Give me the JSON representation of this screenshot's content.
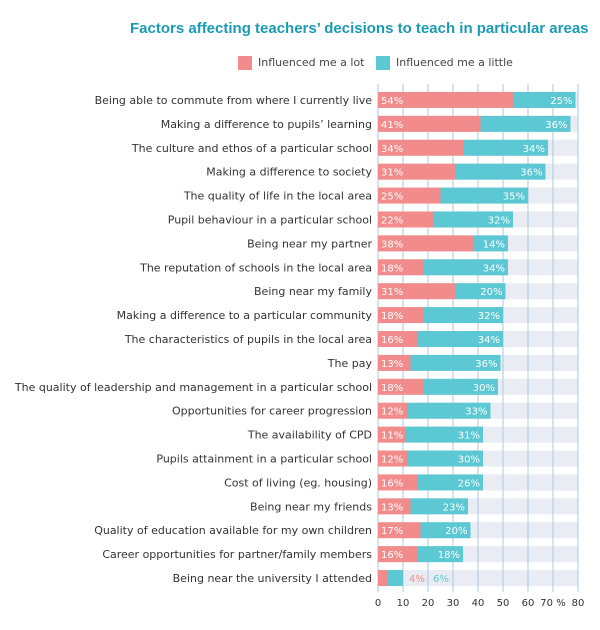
{
  "chart_data": {
    "type": "bar",
    "stacked": true,
    "orientation": "horizontal",
    "title": "Factors affecting teachers’ decisions to teach in particular areas",
    "categories": [
      "Being able to commute from where I currently live",
      "Making a difference to pupils’ learning",
      "The culture and ethos of a particular school",
      "Making a difference to society",
      "The quality of life in the local area",
      "Pupil behaviour in a particular school",
      "Being near my partner",
      "The reputation of schools in the local area",
      "Being near my family",
      "Making a difference to a particular community",
      "The characteristics of pupils in the local area",
      "The pay",
      "The quality of leadership and management in a particular school",
      "Opportunities for career progression",
      "The availability of CPD",
      "Pupils attainment in a particular school",
      "Cost of living (eg. housing)",
      "Being near my friends",
      "Quality of education available for my own children",
      "Career opportunities for partner/family members",
      "Being near the university I attended"
    ],
    "series": [
      {
        "name": "Influenced me a lot",
        "color": "#f28b8b",
        "values": [
          54,
          41,
          34,
          31,
          25,
          22,
          38,
          18,
          31,
          18,
          16,
          13,
          18,
          12,
          11,
          12,
          16,
          13,
          17,
          16,
          4
        ],
        "labels": [
          "54%",
          "41%",
          "34%",
          "31%",
          "25%",
          "22%",
          "38%",
          "18%",
          "31%",
          "18%",
          "16%",
          "13%",
          "18%",
          "12%",
          "11%",
          "12%",
          "16%",
          "13%",
          "17%",
          "16%",
          "4%"
        ]
      },
      {
        "name": "Influenced me a little",
        "color": "#5bc8d4",
        "values": [
          25,
          36,
          34,
          36,
          35,
          32,
          14,
          34,
          20,
          32,
          34,
          36,
          30,
          33,
          31,
          30,
          26,
          23,
          20,
          18,
          6
        ],
        "labels": [
          "25%",
          "36%",
          "34%",
          "36%",
          "35%",
          "32%",
          "14%",
          "34%",
          "20%",
          "32%",
          "34%",
          "36%",
          "30%",
          "33%",
          "31%",
          "30%",
          "26%",
          "23%",
          "20%",
          "18%",
          "6%"
        ]
      }
    ],
    "xlim": [
      0,
      80
    ],
    "x_ticks": [
      "0",
      "10",
      "20",
      "30",
      "40",
      "50",
      "60",
      "70 %",
      "80"
    ],
    "grid": true,
    "background_stripes": true,
    "legend_position": "top"
  }
}
